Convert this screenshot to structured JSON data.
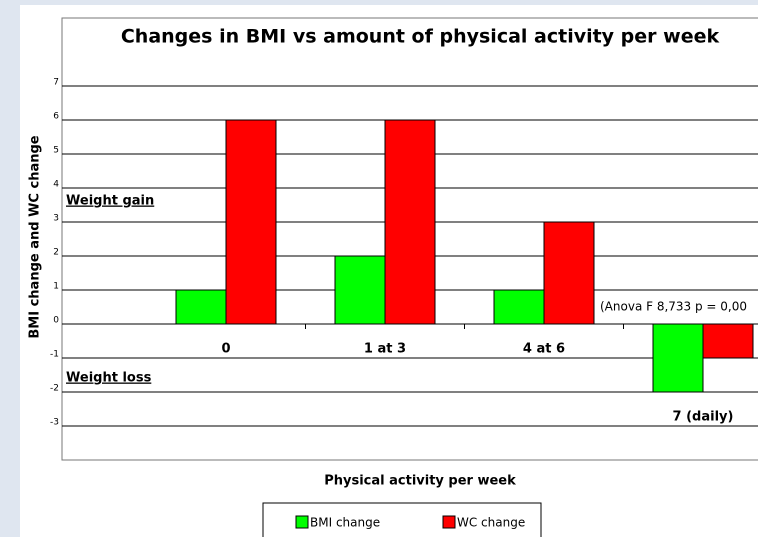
{
  "chart_data": {
    "type": "bar",
    "title": "Changes in BMI vs amount of physical activity per week",
    "x_label": "Physical activity per week",
    "y_label": "BMI change and WC change",
    "categories": [
      "0",
      "1 at 3",
      "4 at 6",
      "7 (daily)"
    ],
    "series": [
      {
        "name": "BMI change",
        "color": "#00ff00",
        "values": [
          1,
          2,
          1,
          -2
        ]
      },
      {
        "name": "WC change",
        "color": "#ff0000",
        "values": [
          6,
          6,
          3,
          -1
        ]
      }
    ],
    "ylim": [
      -4,
      9
    ],
    "yticks": [
      -3,
      -2,
      -1,
      0,
      1,
      2,
      3,
      4,
      5,
      6,
      7
    ],
    "grid": true,
    "legend": "bottom",
    "annotations": [
      "Weight gain",
      "Weight loss",
      "(Anova F 8,733  p = 0,00"
    ]
  }
}
